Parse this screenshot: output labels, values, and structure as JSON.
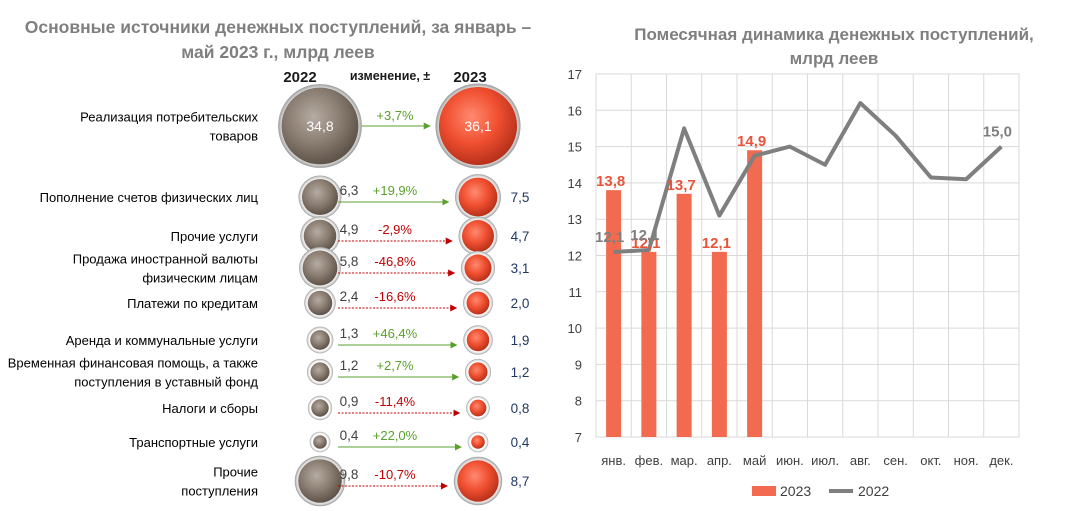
{
  "left_panel": {
    "title_line1": "Основные источники денежных поступлений, за январь –",
    "title_line2": "май 2023 г., млрд  леев",
    "header_2022": "2022",
    "header_change": "изменение, ±",
    "header_2023": "2023",
    "colors": {
      "gray": "#8c7e72",
      "red": "#ee5335",
      "positive": "#5aa02c",
      "negative": "#c00000",
      "value2023": "#1f3864"
    }
  },
  "right_panel": {
    "title_line1": "Помесячная динамика денежных поступлений,",
    "title_line2": "млрд леев",
    "legend_2023": "2023",
    "legend_2022": "2022",
    "colors": {
      "bar": "#f26a4f",
      "line": "#7f7f7f",
      "bar_label": "#e8543b",
      "line_label": "#7f7f7f",
      "grid": "#d9d9d9"
    }
  },
  "chart_data": [
    {
      "type": "table",
      "title": "Основные источники денежных поступлений, за январь – май 2023 г., млрд  леев",
      "columns": [
        "2022",
        "изменение, ±",
        "2023"
      ],
      "rows": [
        {
          "label_lines": [
            "Реализация потребительских",
            "товаров"
          ],
          "v2022": 34.8,
          "v2022_text": "34,8",
          "change": "+3,7%",
          "positive": true,
          "v2023": 36.1,
          "v2023_text": "36,1"
        },
        {
          "label_lines": [
            "Пополнение счетов физических лиц"
          ],
          "v2022": 6.3,
          "v2022_text": "6,3",
          "change": "+19,9%",
          "positive": true,
          "v2023": 7.5,
          "v2023_text": "7,5"
        },
        {
          "label_lines": [
            "Прочие услуги"
          ],
          "v2022": 4.9,
          "v2022_text": "4,9",
          "change": "-2,9%",
          "positive": false,
          "v2023": 4.7,
          "v2023_text": "4,7"
        },
        {
          "label_lines": [
            "Продажа иностранной валюты",
            "физическим лицам"
          ],
          "v2022": 5.8,
          "v2022_text": "5,8",
          "change": "-46,8%",
          "positive": false,
          "v2023": 3.1,
          "v2023_text": "3,1"
        },
        {
          "label_lines": [
            "Платежи по кредитам"
          ],
          "v2022": 2.4,
          "v2022_text": "2,4",
          "change": "-16,6%",
          "positive": false,
          "v2023": 2.0,
          "v2023_text": "2,0"
        },
        {
          "label_lines": [
            "Аренда и коммунальные услуги"
          ],
          "v2022": 1.3,
          "v2022_text": "1,3",
          "change": "+46,4%",
          "positive": true,
          "v2023": 1.9,
          "v2023_text": "1,9"
        },
        {
          "label_lines": [
            "Временная финансовая помощь, а также",
            "поступления в уставный фонд"
          ],
          "v2022": 1.2,
          "v2022_text": "1,2",
          "change": "+2,7%",
          "positive": true,
          "v2023": 1.2,
          "v2023_text": "1,2"
        },
        {
          "label_lines": [
            "Налоги и сборы"
          ],
          "v2022": 0.9,
          "v2022_text": "0,9",
          "change": "-11,4%",
          "positive": false,
          "v2023": 0.8,
          "v2023_text": "0,8"
        },
        {
          "label_lines": [
            "Транспортные услуги"
          ],
          "v2022": 0.4,
          "v2022_text": "0,4",
          "change": "+22,0%",
          "positive": true,
          "v2023": 0.4,
          "v2023_text": "0,4"
        },
        {
          "label_lines": [
            "Прочие",
            "поступления"
          ],
          "v2022": 9.8,
          "v2022_text": "9,8",
          "change": "-10,7%",
          "positive": false,
          "v2023": 8.7,
          "v2023_text": "8,7"
        }
      ]
    },
    {
      "type": "bar",
      "title": "Помесячная динамика денежных поступлений, млрд леев",
      "categories": [
        "янв.",
        "фев.",
        "мар.",
        "апр.",
        "май",
        "июн.",
        "июл.",
        "авг.",
        "сен.",
        "окт.",
        "ноя.",
        "дек."
      ],
      "ylim": [
        7,
        17
      ],
      "yticks": [
        "7",
        "8",
        "9",
        "10",
        "11",
        "12",
        "13",
        "14",
        "15",
        "16",
        "17"
      ],
      "grid": true,
      "legend": "bottom",
      "series": [
        {
          "name": "2023",
          "kind": "bar",
          "values": [
            13.8,
            12.1,
            13.7,
            12.1,
            14.9,
            null,
            null,
            null,
            null,
            null,
            null,
            null
          ],
          "labels": [
            "13,8",
            "12,1",
            "13,7",
            "12,1",
            "14,9"
          ]
        },
        {
          "name": "2022",
          "kind": "line",
          "values": [
            12.1,
            12.15,
            15.5,
            13.1,
            14.75,
            15.0,
            14.5,
            16.2,
            15.3,
            14.15,
            14.1,
            15.0
          ],
          "labels": {
            "0": "12,1",
            "1": "12,1",
            "11": "15,0"
          }
        }
      ]
    }
  ]
}
